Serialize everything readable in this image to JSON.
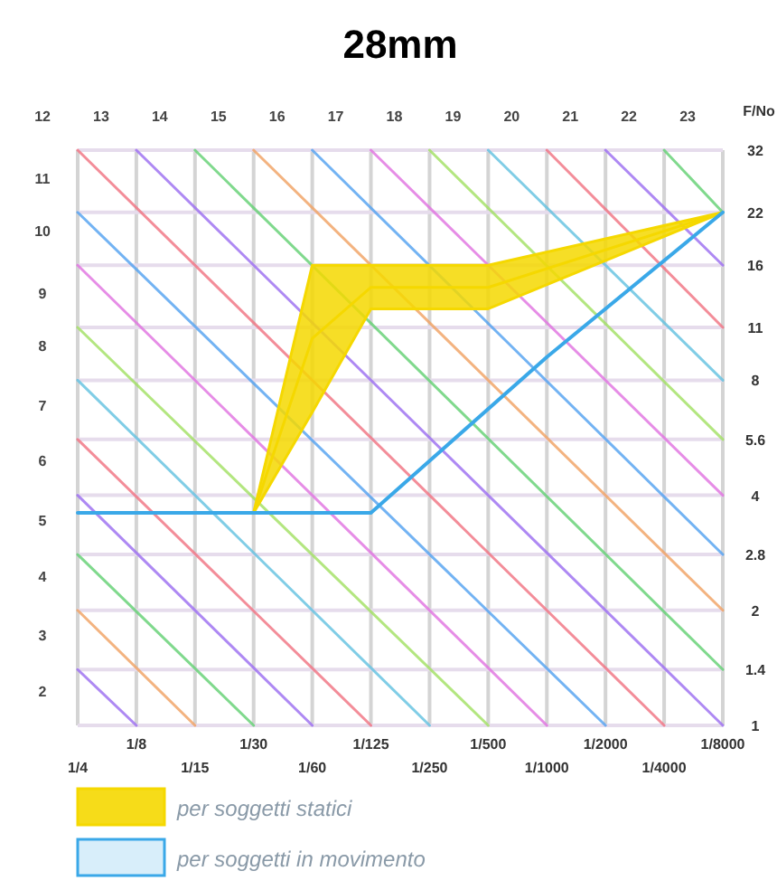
{
  "chart_data": {
    "type": "line",
    "title": "28mm",
    "ylabel": "F/No",
    "categories": [
      "1/4",
      "1/8",
      "1/15",
      "1/30",
      "1/60",
      "1/125",
      "1/250",
      "1/500",
      "1/1000",
      "1/2000",
      "1/4000",
      "1/8000"
    ],
    "ylim": [
      1,
      32
    ],
    "log": "y",
    "yticks": [
      1,
      1.4,
      2,
      2.8,
      4,
      5.6,
      8,
      11,
      16,
      22,
      32
    ],
    "grid": true,
    "legend": "bottom",
    "annotations": [
      "12",
      "13",
      "14",
      "15",
      "16",
      "17",
      "18",
      "19",
      "20",
      "21",
      "22",
      "23",
      "11",
      "10",
      "9",
      "8",
      "7",
      "6",
      "5",
      "4",
      "3",
      "2"
    ],
    "series": [
      {
        "name": "per soggetti statici",
        "type": "line",
        "color": "#f5d800",
        "x": [
          "1/30",
          "1/60",
          "1/125",
          "1/500",
          "1/8000"
        ],
        "values": [
          3.6,
          10.3,
          14,
          14,
          22
        ],
        "upper": [
          3.6,
          16,
          16,
          16,
          22
        ],
        "lower": [
          3.6,
          6.6,
          12.3,
          12.3,
          22
        ]
      },
      {
        "name": "per soggetti in movimento",
        "color": "#3aa8e8",
        "x": [
          "1/4",
          "1/125",
          "1/1000",
          "1/8000"
        ],
        "values": [
          3.6,
          3.6,
          9.2,
          22
        ]
      },
      {
        "color": "#f07080",
        "x": [
          "1/4",
          "1/4000"
        ],
        "values": [
          32,
          1
        ]
      },
      {
        "color": "#9a6cf0",
        "x": [
          "1/8",
          "1/8000"
        ],
        "values": [
          32,
          1
        ]
      },
      {
        "color": "#60d070",
        "x": [
          "1/15",
          "1/8000"
        ],
        "values": [
          32,
          1.4
        ]
      },
      {
        "color": "#f0a060",
        "x": [
          "1/30",
          "1/8000"
        ],
        "values": [
          32,
          2
        ]
      },
      {
        "color": "#50a0f0",
        "x": [
          "1/60",
          "1/8000"
        ],
        "values": [
          32,
          2.8
        ]
      },
      {
        "color": "#e070e0",
        "x": [
          "1/125",
          "1/8000"
        ],
        "values": [
          32,
          4
        ]
      },
      {
        "color": "#a0e060",
        "x": [
          "1/250",
          "1/8000"
        ],
        "values": [
          32,
          5.6
        ]
      },
      {
        "color": "#60c0e0",
        "x": [
          "1/500",
          "1/8000"
        ],
        "values": [
          32,
          8
        ]
      },
      {
        "color": "#f07080",
        "x": [
          "1/1000",
          "1/8000"
        ],
        "values": [
          32,
          11
        ]
      },
      {
        "color": "#9a6cf0",
        "x": [
          "1/2000",
          "1/8000"
        ],
        "values": [
          32,
          16
        ]
      },
      {
        "color": "#60d070",
        "x": [
          "1/4000",
          "1/8000"
        ],
        "values": [
          32,
          22
        ]
      },
      {
        "color": "#50a0f0",
        "x": [
          "1/4",
          "1/2000"
        ],
        "values": [
          22,
          1
        ]
      },
      {
        "color": "#e070e0",
        "x": [
          "1/4",
          "1/1000"
        ],
        "values": [
          16,
          1
        ]
      },
      {
        "color": "#a0e060",
        "x": [
          "1/4",
          "1/500"
        ],
        "values": [
          11,
          1
        ]
      },
      {
        "color": "#60c0e0",
        "x": [
          "1/4",
          "1/250"
        ],
        "values": [
          8,
          1
        ]
      },
      {
        "color": "#f07080",
        "x": [
          "1/4",
          "1/125"
        ],
        "values": [
          5.6,
          1
        ]
      },
      {
        "color": "#9a6cf0",
        "x": [
          "1/4",
          "1/60"
        ],
        "values": [
          4,
          1
        ]
      },
      {
        "color": "#60d070",
        "x": [
          "1/4",
          "1/30"
        ],
        "values": [
          2.8,
          1
        ]
      },
      {
        "color": "#f0a060",
        "x": [
          "1/4",
          "1/15"
        ],
        "values": [
          2,
          1
        ]
      },
      {
        "color": "#9a6cf0",
        "x": [
          "1/4",
          "1/8"
        ],
        "values": [
          1.4,
          1
        ]
      }
    ]
  }
}
